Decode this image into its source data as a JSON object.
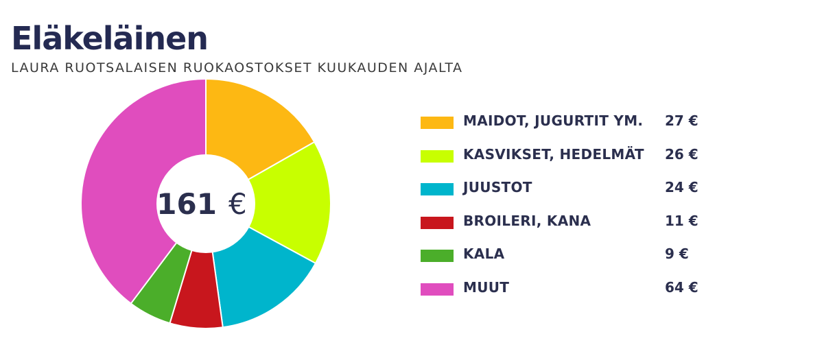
{
  "chart_data": {
    "type": "pie",
    "title": "Eläkeläinen",
    "subtitle": "LAURA RUOTSALAISEN RUOKAOSTOKSET KUUKAUDEN AJALTA",
    "center_label": {
      "value": "161",
      "unit": "€"
    },
    "total": 161,
    "legend_position": "right",
    "slices": [
      {
        "label": "MAIDOT, JUGURTIT YM.",
        "value": 27,
        "value_label": "27 €",
        "color": "#FDB813"
      },
      {
        "label": "KASVIKSET, HEDELMÄT",
        "value": 26,
        "value_label": "26 €",
        "color": "#C8FF00"
      },
      {
        "label": "JUUSTOT",
        "value": 24,
        "value_label": "24 €",
        "color": "#00B5CC"
      },
      {
        "label": "BROILERI, KANA",
        "value": 11,
        "value_label": "11 €",
        "color": "#C8161D"
      },
      {
        "label": "KALA",
        "value": 9,
        "value_label": "9 €",
        "color": "#4BAE2A"
      },
      {
        "label": "MUUT",
        "value": 64,
        "value_label": "64 €",
        "color": "#E04DBE"
      }
    ]
  }
}
